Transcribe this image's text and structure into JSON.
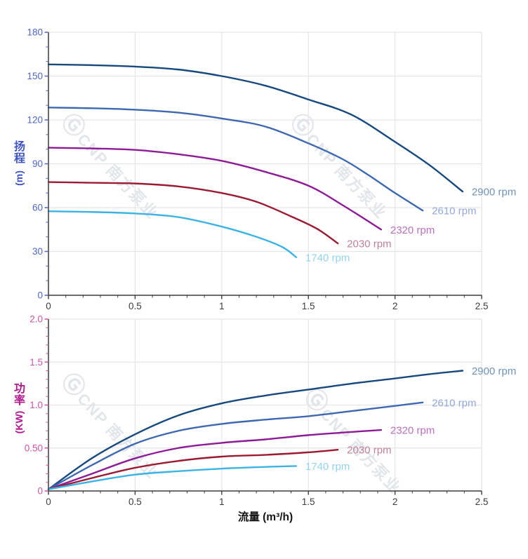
{
  "watermark": {
    "text": "ⒼCNP 南方泵业"
  },
  "x_axis": {
    "title": "流量 (m³/h)",
    "tick_values": [
      0,
      0.5,
      1,
      1.5,
      2,
      2.5
    ],
    "tick_labels": [
      "0",
      "0.5",
      "1",
      "1.5",
      "2",
      "2.5"
    ],
    "minor_step": 0.1,
    "label_color": "#3d3d3d",
    "axis_line_color": "#3c3c3c"
  },
  "chart_data": [
    {
      "type": "line",
      "title": "",
      "xlabel": "流量 (m³/h)",
      "ylabel": "扬程 (m)",
      "ylabel_chars": [
        "扬",
        "程"
      ],
      "ylabel_unit": "(m)",
      "xlim": [
        0,
        2.5
      ],
      "ylim": [
        0,
        180
      ],
      "grid": true,
      "legend_position": "line-end-labels",
      "y_tick_values": [
        0,
        30,
        60,
        90,
        120,
        150,
        180
      ],
      "y_tick_labels": [
        "0",
        "30",
        "60",
        "90",
        "120",
        "150",
        "180"
      ],
      "y_minor_step": 10,
      "tick_color": "#4f66cb",
      "title_color": "#3f53c4",
      "series": [
        {
          "name": "2900 rpm",
          "color": "#17497e",
          "label_color": "#6e94b8",
          "points": [
            [
              0,
              158
            ],
            [
              0.25,
              157.5
            ],
            [
              0.5,
              156.5
            ],
            [
              0.75,
              154.5
            ],
            [
              1.0,
              150
            ],
            [
              1.25,
              143.5
            ],
            [
              1.5,
              134
            ],
            [
              1.75,
              123.5
            ],
            [
              2.0,
              105
            ],
            [
              2.2,
              89
            ],
            [
              2.39,
              71
            ]
          ]
        },
        {
          "name": "2610 rpm",
          "color": "#3e68b2",
          "label_color": "#92a8dc",
          "points": [
            [
              0,
              128.5
            ],
            [
              0.25,
              128
            ],
            [
              0.5,
              127
            ],
            [
              0.75,
              125
            ],
            [
              1.0,
              121
            ],
            [
              1.25,
              115.5
            ],
            [
              1.5,
              104
            ],
            [
              1.7,
              93
            ],
            [
              1.85,
              82
            ],
            [
              2.0,
              70
            ],
            [
              2.16,
              58
            ]
          ]
        },
        {
          "name": "2320 rpm",
          "color": "#8e1b96",
          "label_color": "#ba70c0",
          "points": [
            [
              0,
              101
            ],
            [
              0.25,
              100.5
            ],
            [
              0.5,
              99.5
            ],
            [
              0.75,
              96.5
            ],
            [
              1.0,
              92
            ],
            [
              1.25,
              84.5
            ],
            [
              1.5,
              75
            ],
            [
              1.7,
              61.5
            ],
            [
              1.92,
              45
            ]
          ]
        },
        {
          "name": "2030 rpm",
          "color": "#9c1a33",
          "label_color": "#c08295",
          "points": [
            [
              0,
              77.5
            ],
            [
              0.25,
              77
            ],
            [
              0.5,
              76.5
            ],
            [
              0.75,
              74.5
            ],
            [
              1.0,
              70
            ],
            [
              1.2,
              64
            ],
            [
              1.4,
              54
            ],
            [
              1.55,
              45.5
            ],
            [
              1.67,
              35.5
            ]
          ]
        },
        {
          "name": "1740 rpm",
          "color": "#3bb3e6",
          "label_color": "#92d3f0",
          "points": [
            [
              0,
              57.5
            ],
            [
              0.25,
              57
            ],
            [
              0.5,
              56
            ],
            [
              0.75,
              53.5
            ],
            [
              1.0,
              47
            ],
            [
              1.2,
              40
            ],
            [
              1.35,
              33
            ],
            [
              1.43,
              26
            ]
          ]
        }
      ]
    },
    {
      "type": "line",
      "title": "",
      "xlabel": "流量 (m³/h)",
      "ylabel": "功率 (KW)",
      "ylabel_chars": [
        "功",
        "率"
      ],
      "ylabel_unit": "(KW)",
      "xlim": [
        0,
        2.5
      ],
      "ylim": [
        0,
        2.0
      ],
      "grid": true,
      "legend_position": "line-end-labels",
      "y_tick_values": [
        0,
        0.5,
        1.0,
        1.5,
        2.0
      ],
      "y_tick_labels": [
        "0",
        "0.50",
        "1.0",
        "1.5",
        "2.0"
      ],
      "y_minor_step": 0.1,
      "tick_color": "#cf53a8",
      "title_color": "#b3188e",
      "series": [
        {
          "name": "2900 rpm",
          "color": "#17497e",
          "label_color": "#6e94b8",
          "points": [
            [
              0,
              0.02
            ],
            [
              0.25,
              0.38
            ],
            [
              0.5,
              0.66
            ],
            [
              0.75,
              0.88
            ],
            [
              1.0,
              1.02
            ],
            [
              1.25,
              1.11
            ],
            [
              1.5,
              1.18
            ],
            [
              1.75,
              1.25
            ],
            [
              2.0,
              1.31
            ],
            [
              2.2,
              1.36
            ],
            [
              2.39,
              1.4
            ]
          ]
        },
        {
          "name": "2610 rpm",
          "color": "#3e68b2",
          "label_color": "#92a8dc",
          "points": [
            [
              0,
              0.02
            ],
            [
              0.25,
              0.3
            ],
            [
              0.5,
              0.55
            ],
            [
              0.75,
              0.7
            ],
            [
              1.0,
              0.78
            ],
            [
              1.25,
              0.83
            ],
            [
              1.5,
              0.87
            ],
            [
              1.75,
              0.93
            ],
            [
              2.0,
              0.99
            ],
            [
              2.16,
              1.03
            ]
          ]
        },
        {
          "name": "2320 rpm",
          "color": "#8e1b96",
          "label_color": "#ba70c0",
          "points": [
            [
              0,
              0.02
            ],
            [
              0.25,
              0.2
            ],
            [
              0.5,
              0.38
            ],
            [
              0.75,
              0.5
            ],
            [
              1.0,
              0.56
            ],
            [
              1.25,
              0.6
            ],
            [
              1.5,
              0.65
            ],
            [
              1.7,
              0.68
            ],
            [
              1.92,
              0.71
            ]
          ]
        },
        {
          "name": "2030 rpm",
          "color": "#9c1a33",
          "label_color": "#c08295",
          "points": [
            [
              0,
              0.02
            ],
            [
              0.25,
              0.15
            ],
            [
              0.5,
              0.27
            ],
            [
              0.75,
              0.35
            ],
            [
              1.0,
              0.4
            ],
            [
              1.25,
              0.42
            ],
            [
              1.5,
              0.45
            ],
            [
              1.67,
              0.48
            ]
          ]
        },
        {
          "name": "1740 rpm",
          "color": "#3bb3e6",
          "label_color": "#92d3f0",
          "points": [
            [
              0,
              0.02
            ],
            [
              0.25,
              0.11
            ],
            [
              0.5,
              0.19
            ],
            [
              0.75,
              0.23
            ],
            [
              1.0,
              0.26
            ],
            [
              1.25,
              0.28
            ],
            [
              1.43,
              0.29
            ]
          ]
        }
      ]
    }
  ],
  "style": {
    "grid_color": "#e5e5e8",
    "background": "#ffffff"
  }
}
